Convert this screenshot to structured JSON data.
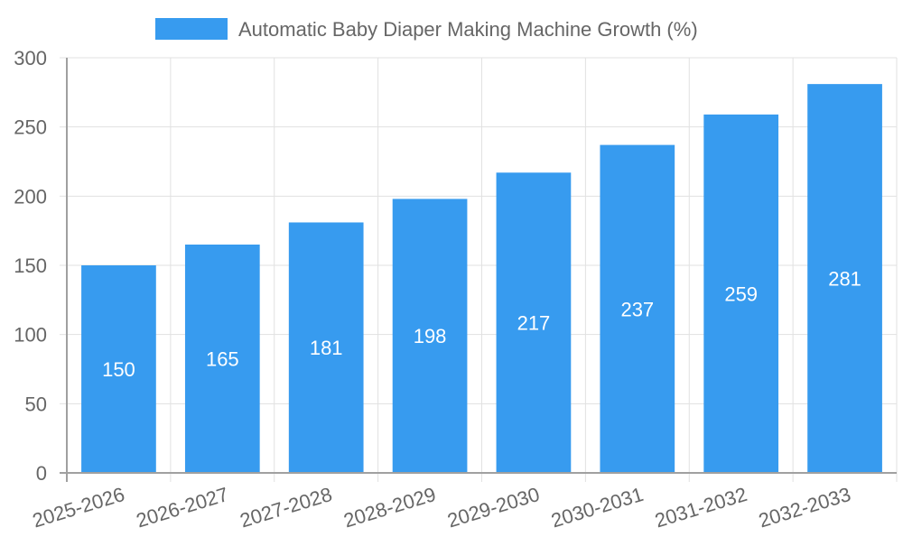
{
  "chart_data": {
    "type": "bar",
    "title": "",
    "xlabel": "",
    "ylabel": "",
    "categories": [
      "2025-2026",
      "2026-2027",
      "2027-2028",
      "2028-2029",
      "2029-2030",
      "2030-2031",
      "2031-2032",
      "2032-2033"
    ],
    "series": [
      {
        "name": "Automatic Baby Diaper Making Machine Growth (%)",
        "values": [
          150,
          165,
          181,
          198,
          217,
          237,
          259,
          281
        ],
        "color": "#379bef"
      }
    ],
    "ylim": [
      0,
      300
    ],
    "yticks": [
      0,
      50,
      100,
      150,
      200,
      250,
      300
    ],
    "grid": true,
    "legend_position": "top",
    "data_labels": true
  },
  "colors": {
    "bar": "#379bef",
    "grid": "#e1e1e1",
    "axis": "#a0a0a0",
    "text": "#666666",
    "label": "#ffffff"
  }
}
